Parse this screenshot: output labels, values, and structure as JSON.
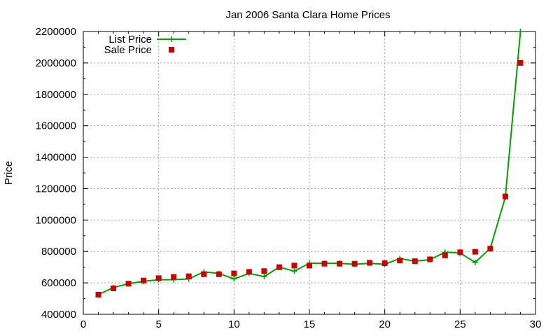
{
  "chart_data": {
    "type": "line",
    "title": "Jan 2006 Santa Clara Home Prices",
    "xlabel": "",
    "ylabel": "Price",
    "xlim": [
      0,
      30
    ],
    "ylim": [
      400000,
      2200000
    ],
    "x_ticks": [
      "0",
      "5",
      "10",
      "15",
      "20",
      "25",
      "30"
    ],
    "y_ticks": [
      "400000",
      "600000",
      "800000",
      "1000000",
      "1200000",
      "1400000",
      "1600000",
      "1800000",
      "2000000",
      "2200000"
    ],
    "grid": true,
    "legend_position": "top-left",
    "x": [
      1,
      2,
      3,
      4,
      5,
      6,
      7,
      8,
      9,
      10,
      11,
      12,
      13,
      14,
      15,
      16,
      17,
      18,
      19,
      20,
      21,
      22,
      23,
      24,
      25,
      26,
      27,
      28,
      29
    ],
    "series": [
      {
        "name": "List Price",
        "style": "line-with-plus-markers",
        "color": "#00a000",
        "values": [
          525000,
          570000,
          595000,
          610000,
          620000,
          620000,
          625000,
          670000,
          660000,
          625000,
          660000,
          640000,
          700000,
          675000,
          725000,
          725000,
          725000,
          718000,
          725000,
          718000,
          755000,
          738000,
          748000,
          795000,
          790000,
          730000,
          820000,
          1145000,
          2200000
        ]
      },
      {
        "name": "Sale Price",
        "style": "square-markers",
        "color": "#cc0000",
        "values": [
          525000,
          565000,
          595000,
          615000,
          630000,
          638000,
          642000,
          655000,
          655000,
          660000,
          670000,
          675000,
          700000,
          710000,
          710000,
          722000,
          722000,
          722000,
          728000,
          725000,
          742000,
          738000,
          750000,
          775000,
          795000,
          798000,
          818000,
          1150000,
          2000000
        ]
      }
    ]
  }
}
